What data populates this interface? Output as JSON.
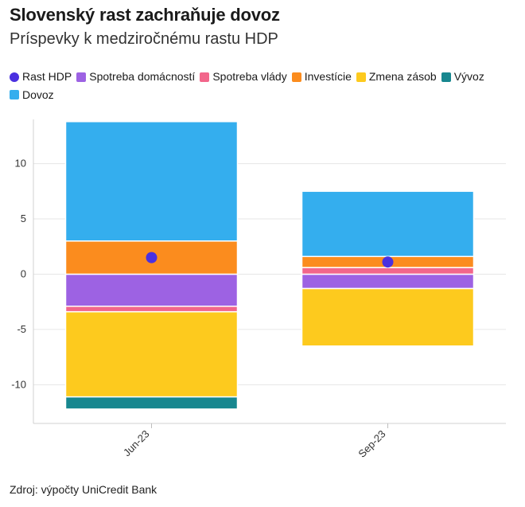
{
  "chart_data": {
    "type": "bar",
    "title": "Slovenský rast zachraňuje dovoz",
    "subtitle": "Príspevky k medziročnému rastu HDP",
    "source": "Zdroj: výpočty UniCredit Bank",
    "categories": [
      "Jun-23",
      "Sep-23"
    ],
    "ylim": [
      -13.5,
      14
    ],
    "yticks": [
      -10,
      -5,
      0,
      5,
      10
    ],
    "ytick_labels": [
      "-10",
      "-5",
      "0",
      "5",
      "10"
    ],
    "grid": true,
    "legend_position": "top",
    "series": [
      {
        "name": "Spotreba domácností",
        "color": "#9d62e3",
        "values": [
          -2.9,
          -1.3
        ]
      },
      {
        "name": "Spotreba vlády",
        "color": "#f2668b",
        "values": [
          -0.5,
          0.6
        ]
      },
      {
        "name": "Investície",
        "color": "#fb8c1e",
        "values": [
          3.0,
          1.0
        ]
      },
      {
        "name": "Zmena zásob",
        "color": "#fdca1e",
        "values": [
          -7.7,
          -5.2
        ]
      },
      {
        "name": "Vývoz",
        "color": "#17878f",
        "values": [
          -1.1,
          0.0
        ]
      },
      {
        "name": "Dovoz",
        "color": "#34aeee",
        "values": [
          10.8,
          5.9
        ]
      }
    ],
    "line_series": {
      "name": "Rast HDP",
      "color": "#4a30e0",
      "values": [
        1.5,
        1.1
      ]
    },
    "legend": [
      {
        "name": "Rast HDP",
        "color": "#4a30e0",
        "shape": "circle"
      },
      {
        "name": "Spotreba domácností",
        "color": "#9d62e3",
        "shape": "square"
      },
      {
        "name": "Spotreba vlády",
        "color": "#f2668b",
        "shape": "square"
      },
      {
        "name": "Investície",
        "color": "#fb8c1e",
        "shape": "square"
      },
      {
        "name": "Zmena zásob",
        "color": "#fdca1e",
        "shape": "square"
      },
      {
        "name": "Vývoz",
        "color": "#17878f",
        "shape": "square"
      },
      {
        "name": "Dovoz",
        "color": "#34aeee",
        "shape": "square"
      }
    ]
  }
}
